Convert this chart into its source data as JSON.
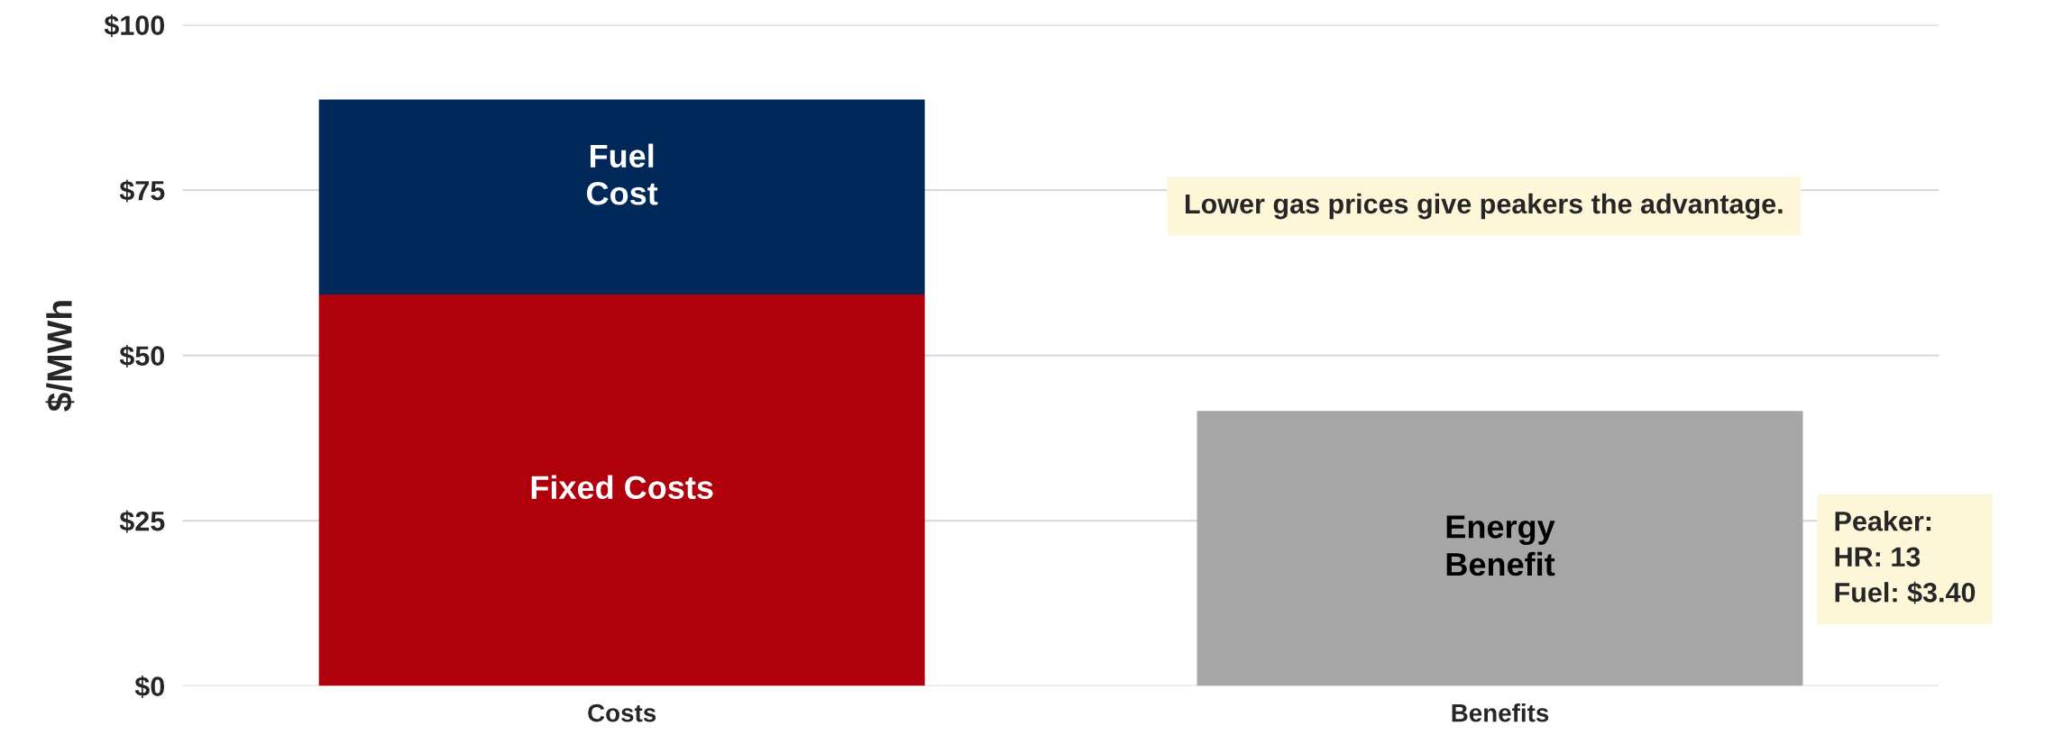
{
  "chart_data": {
    "type": "bar",
    "stacked": true,
    "ylabel": "$/MWh",
    "categories": [
      "Costs",
      "Benefits"
    ],
    "series": [
      {
        "name": "Fixed Costs",
        "color": "#b0000b",
        "values": [
          59.2,
          null
        ]
      },
      {
        "name": "Fuel Cost",
        "color": "#002859",
        "values": [
          29.5,
          null
        ]
      },
      {
        "name": "Energy Benefit",
        "color": "#a5a6a5",
        "values": [
          null,
          41.6
        ]
      }
    ],
    "ylim": [
      0,
      100
    ],
    "yticks": [
      {
        "value": 0,
        "label": "$0"
      },
      {
        "value": 25,
        "label": "$25"
      },
      {
        "value": 50,
        "label": "$50"
      },
      {
        "value": 75,
        "label": "$75"
      },
      {
        "value": 100,
        "label": "$100"
      }
    ],
    "grid": "y",
    "annotations": [
      "Lower gas prices give peakers the advantage.",
      "Peaker:\nHR: 13\nFuel: $3.40"
    ]
  }
}
